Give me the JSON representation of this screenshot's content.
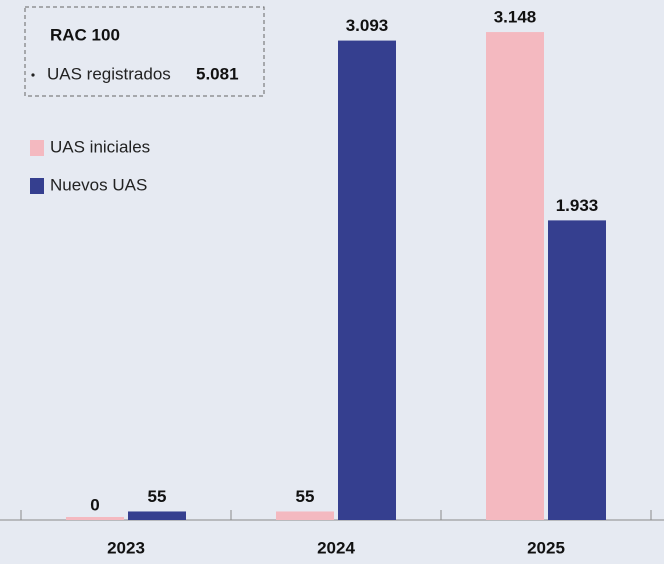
{
  "chart_data": {
    "type": "bar",
    "annotation": {
      "title": "RAC 100",
      "text": "UAS registrados",
      "value": "5.081"
    },
    "categories": [
      "2023",
      "2024",
      "2025"
    ],
    "series": [
      {
        "name": "UAS iniciales",
        "color": "#f4b9c0",
        "values": [
          0,
          55,
          3148
        ],
        "value_labels": [
          "0",
          "55",
          "3.148"
        ]
      },
      {
        "name": "Nuevos UAS",
        "color": "#353f8f",
        "values": [
          55,
          3093,
          1933
        ],
        "value_labels": [
          "55",
          "3.093",
          "1.933"
        ]
      }
    ],
    "ylim": [
      0,
      3200
    ],
    "legend": "upper left"
  }
}
